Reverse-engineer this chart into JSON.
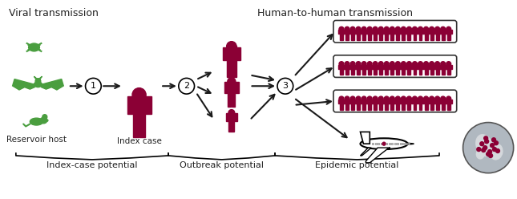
{
  "title_viral": "Viral transmission",
  "title_human": "Human-to-human transmission",
  "label_reservoir": "Reservoir host",
  "label_index": "Index case",
  "label_index_potential": "Index-case potential",
  "label_outbreak_potential": "Outbreak potential",
  "label_epidemic_potential": "Epidemic potential",
  "green_color": "#4a9e3f",
  "red_color": "#8b0035",
  "text_color": "#222222",
  "bg_color": "#ffffff",
  "arrow_color": "#1a1a1a",
  "person_group_count": 20,
  "num_groups": 3,
  "figsize": [
    6.45,
    2.48
  ],
  "dpi": 100
}
